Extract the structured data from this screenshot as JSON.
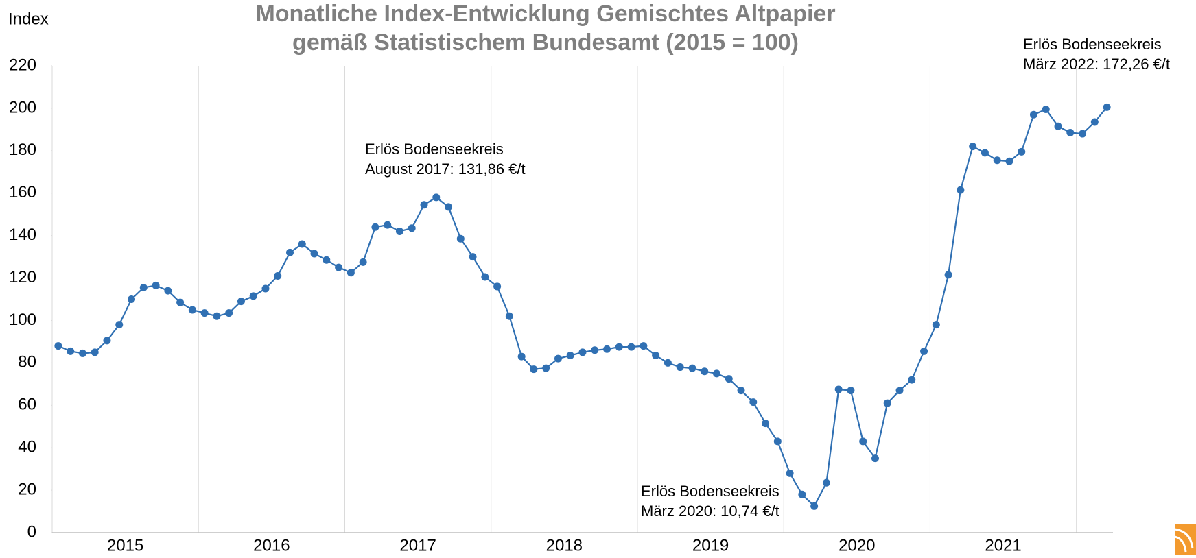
{
  "chart_data": {
    "type": "line",
    "title_lines": [
      "Monatliche Index-Entwicklung Gemischtes Altpapier",
      "gemäß Statistischem Bundesamt (2015 = 100)"
    ],
    "y_label": "Index",
    "years": [
      "2015",
      "2016",
      "2017",
      "2018",
      "2019",
      "2020",
      "2021"
    ],
    "series": [
      {
        "color": "#3070b3",
        "values": [
          88,
          85.5,
          84.5,
          85,
          90.5,
          98,
          110,
          115.5,
          116.5,
          114,
          108.5,
          105,
          103.5,
          102,
          103.5,
          109,
          111.5,
          115,
          121,
          132,
          136,
          131.5,
          128.5,
          125,
          122.5,
          127.5,
          144,
          145,
          142,
          143.5,
          154.5,
          158,
          153.5,
          138.5,
          130,
          120.5,
          116,
          102,
          83,
          77,
          77.5,
          82,
          83.5,
          85,
          86,
          86.5,
          87.5,
          87.5,
          88,
          83.5,
          80,
          78,
          77.5,
          76,
          75,
          72.5,
          67,
          61.5,
          51.5,
          43,
          28,
          18,
          12.5,
          23.5,
          67.5,
          67,
          43,
          35,
          61,
          67,
          72,
          85.5,
          98,
          121.5,
          161.5,
          182,
          179,
          175.5,
          175,
          179.5,
          197,
          199.5,
          191.5,
          188.5,
          188,
          193.5,
          200.5
        ]
      }
    ],
    "ylim": [
      0,
      220
    ],
    "yticks": [
      0,
      20,
      40,
      60,
      80,
      100,
      120,
      140,
      160,
      180,
      200,
      220
    ],
    "annotations": [
      {
        "lines": [
          "Erlös Bodenseekreis",
          "August 2017: 131,86 €/t"
        ]
      },
      {
        "lines": [
          "Erlös Bodenseekreis",
          "März 2020: 10,74 €/t"
        ]
      },
      {
        "lines": [
          "Erlös Bodenseekreis",
          "März 2022: 172,26 €/t"
        ]
      }
    ]
  }
}
